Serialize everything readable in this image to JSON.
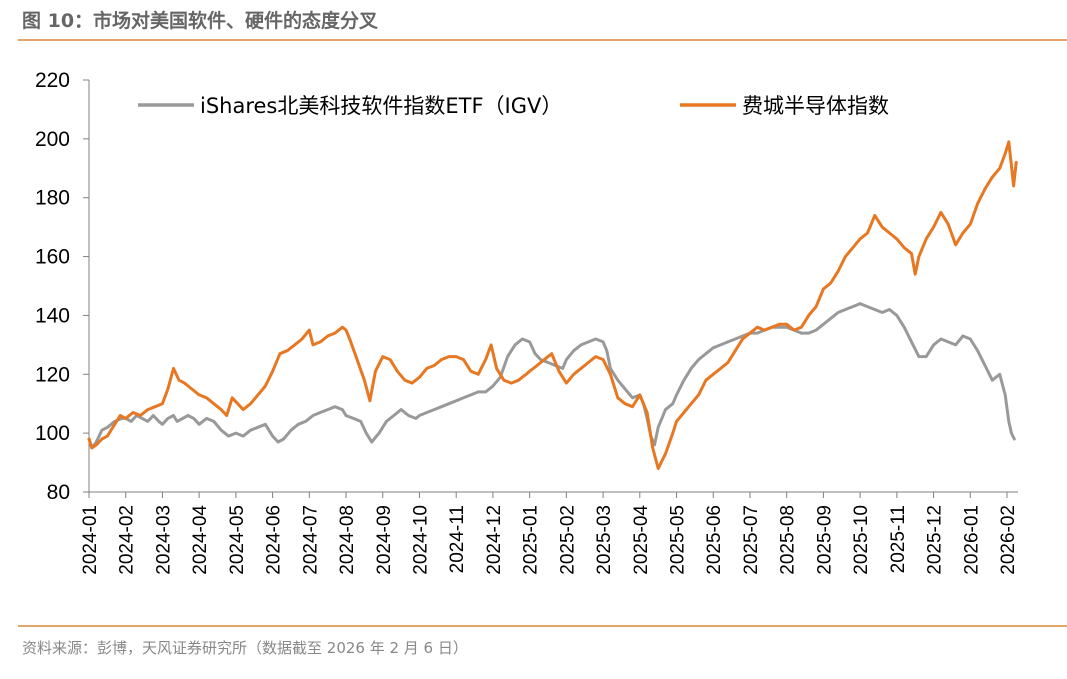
{
  "figure": {
    "title": "图 10：市场对美国软件、硬件的态度分叉",
    "source": "资料来源：彭博，天风证券研究所（数据截至 2026 年 2 月 6 日）"
  },
  "colors": {
    "igv": "#999999",
    "sox": "#E87722",
    "rule": "#E4A56A",
    "axis": "#808080"
  },
  "chart_data": {
    "type": "line",
    "title": "",
    "xlabel": "",
    "ylabel": "",
    "ylim": [
      80,
      220
    ],
    "yticks": [
      "80",
      "100",
      "120",
      "140",
      "160",
      "180",
      "200",
      "220"
    ],
    "x_tick_labels": [
      "2024-01",
      "2024-02",
      "2024-03",
      "2024-04",
      "2024-05",
      "2024-06",
      "2024-07",
      "2024-08",
      "2024-09",
      "2024-10",
      "2024-11",
      "2024-12",
      "2025-01",
      "2025-02",
      "2025-03",
      "2025-04",
      "2025-05",
      "2025-06",
      "2025-07",
      "2025-08",
      "2025-09",
      "2025-10",
      "2025-11",
      "2025-12",
      "2026-01",
      "2026-02"
    ],
    "grid": false,
    "legend": "top",
    "x_unit": "months since 2024-01",
    "series": [
      {
        "name": "iShares北美科技软件指数ETF（IGV）",
        "color": "#999999",
        "points": [
          [
            0.0,
            98
          ],
          [
            0.08,
            95
          ],
          [
            0.2,
            97
          ],
          [
            0.35,
            101
          ],
          [
            0.5,
            102
          ],
          [
            0.7,
            104
          ],
          [
            0.9,
            105
          ],
          [
            1.0,
            105
          ],
          [
            1.15,
            104
          ],
          [
            1.3,
            106
          ],
          [
            1.45,
            105
          ],
          [
            1.6,
            104
          ],
          [
            1.75,
            106
          ],
          [
            1.9,
            104
          ],
          [
            2.0,
            103
          ],
          [
            2.15,
            105
          ],
          [
            2.3,
            106
          ],
          [
            2.4,
            104
          ],
          [
            2.55,
            105
          ],
          [
            2.7,
            106
          ],
          [
            2.85,
            105
          ],
          [
            3.0,
            103
          ],
          [
            3.2,
            105
          ],
          [
            3.4,
            104
          ],
          [
            3.6,
            101
          ],
          [
            3.8,
            99
          ],
          [
            4.0,
            100
          ],
          [
            4.2,
            99
          ],
          [
            4.4,
            101
          ],
          [
            4.6,
            102
          ],
          [
            4.8,
            103
          ],
          [
            5.0,
            99
          ],
          [
            5.15,
            97
          ],
          [
            5.3,
            98
          ],
          [
            5.5,
            101
          ],
          [
            5.7,
            103
          ],
          [
            5.9,
            104
          ],
          [
            6.1,
            106
          ],
          [
            6.3,
            107
          ],
          [
            6.5,
            108
          ],
          [
            6.7,
            109
          ],
          [
            6.9,
            108
          ],
          [
            7.0,
            106
          ],
          [
            7.2,
            105
          ],
          [
            7.4,
            104
          ],
          [
            7.55,
            100
          ],
          [
            7.7,
            97
          ],
          [
            7.9,
            100
          ],
          [
            8.1,
            104
          ],
          [
            8.3,
            106
          ],
          [
            8.5,
            108
          ],
          [
            8.7,
            106
          ],
          [
            8.9,
            105
          ],
          [
            9.0,
            106
          ],
          [
            9.2,
            107
          ],
          [
            9.4,
            108
          ],
          [
            9.6,
            109
          ],
          [
            9.8,
            110
          ],
          [
            10.0,
            111
          ],
          [
            10.2,
            112
          ],
          [
            10.4,
            113
          ],
          [
            10.6,
            114
          ],
          [
            10.8,
            114
          ],
          [
            11.0,
            116
          ],
          [
            11.2,
            119
          ],
          [
            11.4,
            126
          ],
          [
            11.6,
            130
          ],
          [
            11.8,
            132
          ],
          [
            12.0,
            131
          ],
          [
            12.15,
            127
          ],
          [
            12.3,
            125
          ],
          [
            12.5,
            124
          ],
          [
            12.7,
            123
          ],
          [
            12.9,
            122
          ],
          [
            13.0,
            125
          ],
          [
            13.2,
            128
          ],
          [
            13.4,
            130
          ],
          [
            13.6,
            131
          ],
          [
            13.8,
            132
          ],
          [
            14.0,
            131
          ],
          [
            14.1,
            128
          ],
          [
            14.2,
            122
          ],
          [
            14.4,
            118
          ],
          [
            14.6,
            115
          ],
          [
            14.8,
            112
          ],
          [
            15.0,
            113
          ],
          [
            15.1,
            110
          ],
          [
            15.2,
            105
          ],
          [
            15.3,
            99
          ],
          [
            15.4,
            96
          ],
          [
            15.5,
            102
          ],
          [
            15.7,
            108
          ],
          [
            15.9,
            110
          ],
          [
            16.0,
            113
          ],
          [
            16.2,
            118
          ],
          [
            16.4,
            122
          ],
          [
            16.6,
            125
          ],
          [
            16.8,
            127
          ],
          [
            17.0,
            129
          ],
          [
            17.2,
            130
          ],
          [
            17.4,
            131
          ],
          [
            17.6,
            132
          ],
          [
            17.8,
            133
          ],
          [
            18.0,
            134
          ],
          [
            18.2,
            134
          ],
          [
            18.4,
            135
          ],
          [
            18.6,
            136
          ],
          [
            18.8,
            136
          ],
          [
            19.0,
            136
          ],
          [
            19.2,
            135
          ],
          [
            19.4,
            134
          ],
          [
            19.6,
            134
          ],
          [
            19.8,
            135
          ],
          [
            20.0,
            137
          ],
          [
            20.2,
            139
          ],
          [
            20.4,
            141
          ],
          [
            20.6,
            142
          ],
          [
            20.8,
            143
          ],
          [
            21.0,
            144
          ],
          [
            21.2,
            143
          ],
          [
            21.4,
            142
          ],
          [
            21.6,
            141
          ],
          [
            21.8,
            142
          ],
          [
            22.0,
            140
          ],
          [
            22.2,
            136
          ],
          [
            22.4,
            131
          ],
          [
            22.6,
            126
          ],
          [
            22.8,
            126
          ],
          [
            23.0,
            130
          ],
          [
            23.2,
            132
          ],
          [
            23.4,
            131
          ],
          [
            23.6,
            130
          ],
          [
            23.8,
            133
          ],
          [
            24.0,
            132
          ],
          [
            24.2,
            128
          ],
          [
            24.4,
            123
          ],
          [
            24.6,
            118
          ],
          [
            24.8,
            120
          ],
          [
            24.95,
            113
          ],
          [
            25.05,
            104
          ],
          [
            25.12,
            100
          ],
          [
            25.2,
            98
          ]
        ]
      },
      {
        "name": "费城半导体指数",
        "color": "#E87722",
        "points": [
          [
            0.0,
            98
          ],
          [
            0.08,
            95
          ],
          [
            0.2,
            96
          ],
          [
            0.35,
            98
          ],
          [
            0.5,
            99
          ],
          [
            0.7,
            103
          ],
          [
            0.85,
            106
          ],
          [
            1.0,
            105
          ],
          [
            1.2,
            107
          ],
          [
            1.4,
            106
          ],
          [
            1.6,
            108
          ],
          [
            1.8,
            109
          ],
          [
            2.0,
            110
          ],
          [
            2.15,
            115
          ],
          [
            2.3,
            122
          ],
          [
            2.45,
            118
          ],
          [
            2.6,
            117
          ],
          [
            2.8,
            115
          ],
          [
            3.0,
            113
          ],
          [
            3.2,
            112
          ],
          [
            3.4,
            110
          ],
          [
            3.6,
            108
          ],
          [
            3.75,
            106
          ],
          [
            3.9,
            112
          ],
          [
            4.05,
            110
          ],
          [
            4.2,
            108
          ],
          [
            4.4,
            110
          ],
          [
            4.6,
            113
          ],
          [
            4.8,
            116
          ],
          [
            5.0,
            121
          ],
          [
            5.2,
            127
          ],
          [
            5.4,
            128
          ],
          [
            5.6,
            130
          ],
          [
            5.8,
            132
          ],
          [
            6.0,
            135
          ],
          [
            6.1,
            130
          ],
          [
            6.3,
            131
          ],
          [
            6.5,
            133
          ],
          [
            6.7,
            134
          ],
          [
            6.9,
            136
          ],
          [
            7.0,
            135
          ],
          [
            7.1,
            132
          ],
          [
            7.3,
            125
          ],
          [
            7.5,
            118
          ],
          [
            7.65,
            111
          ],
          [
            7.8,
            121
          ],
          [
            8.0,
            126
          ],
          [
            8.2,
            125
          ],
          [
            8.4,
            121
          ],
          [
            8.6,
            118
          ],
          [
            8.8,
            117
          ],
          [
            9.0,
            119
          ],
          [
            9.2,
            122
          ],
          [
            9.4,
            123
          ],
          [
            9.6,
            125
          ],
          [
            9.8,
            126
          ],
          [
            10.0,
            126
          ],
          [
            10.2,
            125
          ],
          [
            10.4,
            121
          ],
          [
            10.6,
            120
          ],
          [
            10.8,
            125
          ],
          [
            10.95,
            130
          ],
          [
            11.1,
            122
          ],
          [
            11.3,
            118
          ],
          [
            11.5,
            117
          ],
          [
            11.7,
            118
          ],
          [
            11.9,
            120
          ],
          [
            12.0,
            121
          ],
          [
            12.2,
            123
          ],
          [
            12.4,
            125
          ],
          [
            12.6,
            127
          ],
          [
            12.8,
            121
          ],
          [
            13.0,
            117
          ],
          [
            13.2,
            120
          ],
          [
            13.4,
            122
          ],
          [
            13.6,
            124
          ],
          [
            13.8,
            126
          ],
          [
            14.0,
            125
          ],
          [
            14.2,
            120
          ],
          [
            14.4,
            112
          ],
          [
            14.6,
            110
          ],
          [
            14.8,
            109
          ],
          [
            15.0,
            113
          ],
          [
            15.2,
            107
          ],
          [
            15.35,
            95
          ],
          [
            15.5,
            88
          ],
          [
            15.7,
            93
          ],
          [
            15.9,
            100
          ],
          [
            16.0,
            104
          ],
          [
            16.2,
            107
          ],
          [
            16.4,
            110
          ],
          [
            16.6,
            113
          ],
          [
            16.8,
            118
          ],
          [
            17.0,
            120
          ],
          [
            17.2,
            122
          ],
          [
            17.4,
            124
          ],
          [
            17.6,
            128
          ],
          [
            17.8,
            132
          ],
          [
            18.0,
            134
          ],
          [
            18.2,
            136
          ],
          [
            18.4,
            135
          ],
          [
            18.6,
            136
          ],
          [
            18.8,
            137
          ],
          [
            19.0,
            137
          ],
          [
            19.2,
            135
          ],
          [
            19.4,
            136
          ],
          [
            19.6,
            140
          ],
          [
            19.8,
            143
          ],
          [
            20.0,
            149
          ],
          [
            20.2,
            151
          ],
          [
            20.4,
            155
          ],
          [
            20.6,
            160
          ],
          [
            20.8,
            163
          ],
          [
            21.0,
            166
          ],
          [
            21.2,
            168
          ],
          [
            21.4,
            174
          ],
          [
            21.6,
            170
          ],
          [
            21.8,
            168
          ],
          [
            22.0,
            166
          ],
          [
            22.2,
            163
          ],
          [
            22.4,
            161
          ],
          [
            22.5,
            154
          ],
          [
            22.6,
            160
          ],
          [
            22.8,
            166
          ],
          [
            23.0,
            170
          ],
          [
            23.2,
            175
          ],
          [
            23.4,
            171
          ],
          [
            23.6,
            164
          ],
          [
            23.8,
            168
          ],
          [
            24.0,
            171
          ],
          [
            24.2,
            178
          ],
          [
            24.4,
            183
          ],
          [
            24.6,
            187
          ],
          [
            24.8,
            190
          ],
          [
            24.95,
            195
          ],
          [
            25.05,
            199
          ],
          [
            25.12,
            191
          ],
          [
            25.18,
            184
          ],
          [
            25.25,
            192
          ]
        ]
      }
    ]
  }
}
